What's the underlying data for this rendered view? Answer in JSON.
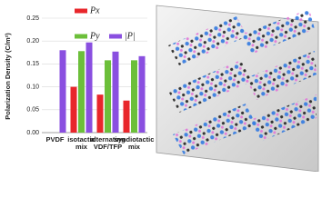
{
  "chart_data": {
    "type": "bar",
    "y_label": "Polarization Density (C/m²)",
    "categories": [
      "PVDF",
      "isotactic mix",
      "alternating VDF/TFP",
      "syndiotactic mix"
    ],
    "series": [
      {
        "name": "Px",
        "color": "#e8262b",
        "values": [
          null,
          0.1,
          0.083,
          0.07
        ]
      },
      {
        "name": "Py",
        "color": "#6cbf3a",
        "values": [
          null,
          0.178,
          0.158,
          0.158
        ]
      },
      {
        "name": "|P|",
        "color": "#8a4fe0",
        "values": [
          0.18,
          0.197,
          0.177,
          0.167
        ]
      }
    ],
    "ylim": [
      0,
      0.25
    ],
    "yticks": [
      {
        "value": 0,
        "label": "0.00"
      },
      {
        "value": 0.05,
        "label": "0.05"
      },
      {
        "value": 0.1,
        "label": "0.10"
      },
      {
        "value": 0.15,
        "label": "0.15"
      },
      {
        "value": 0.2,
        "label": "0.20"
      },
      {
        "value": 0.25,
        "label": "0.25"
      }
    ],
    "grid": true
  }
}
